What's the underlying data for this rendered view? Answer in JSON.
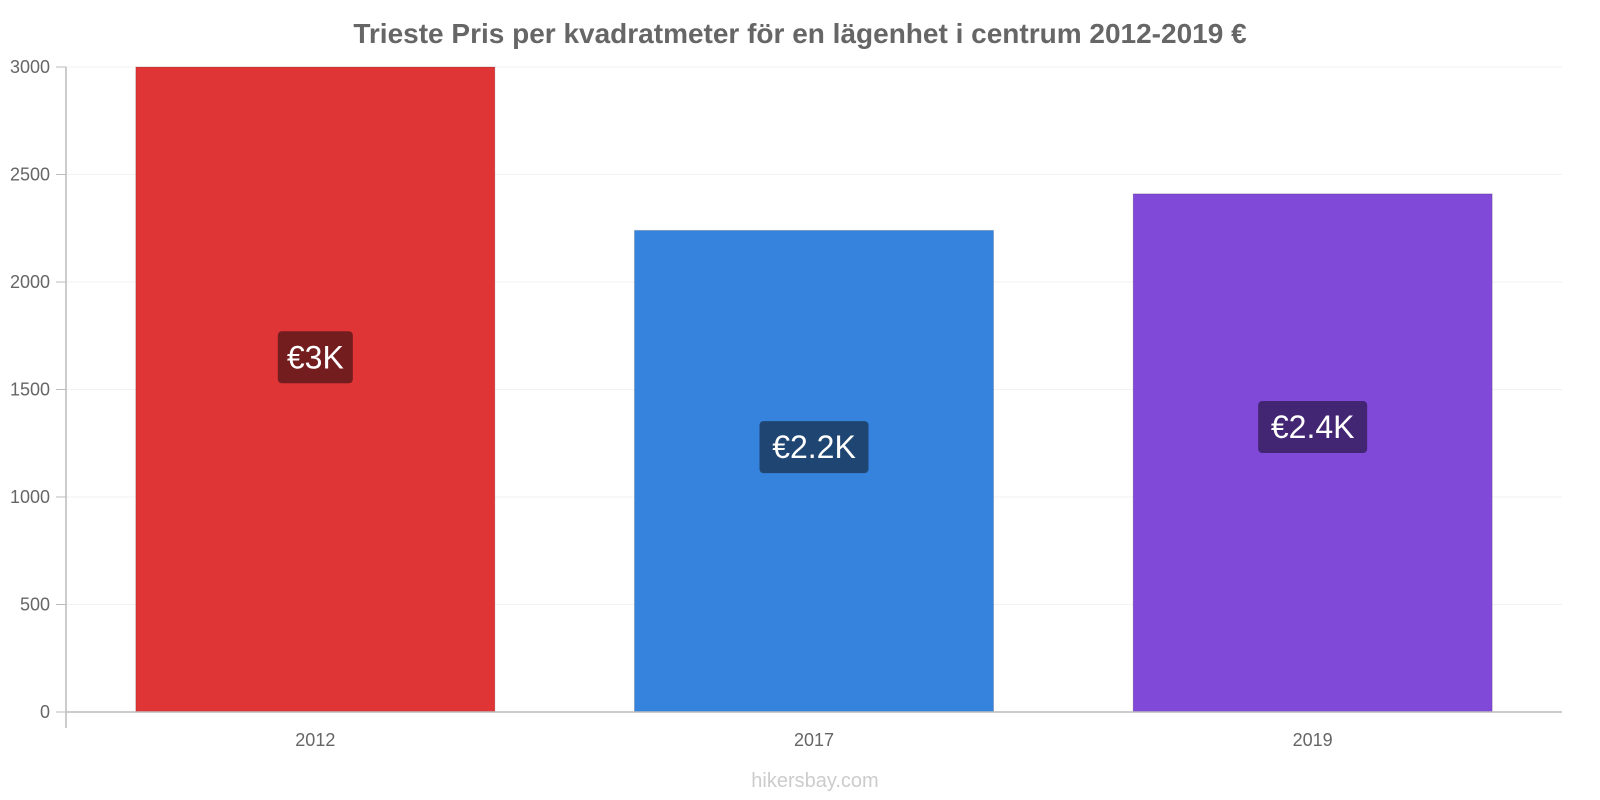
{
  "chart_data": {
    "type": "bar",
    "title": "Trieste Pris per kvadratmeter för en lägenhet i centrum 2012-2019 €",
    "categories": [
      "2012",
      "2017",
      "2019"
    ],
    "values": [
      3000,
      2240,
      2410
    ],
    "value_labels": [
      "€3K",
      "€2.2K",
      "€2.4K"
    ],
    "bar_colors": [
      "#e03537",
      "#3683dd",
      "#8149d8"
    ],
    "label_bg_colors": [
      "#741d1e",
      "#1f4672",
      "#432673"
    ],
    "ylim": [
      0,
      3000
    ],
    "yticks": [
      0,
      500,
      1000,
      1500,
      2000,
      2500,
      3000
    ],
    "grid": true,
    "xlabel": "",
    "ylabel": ""
  },
  "watermark": "hikersbay.com"
}
